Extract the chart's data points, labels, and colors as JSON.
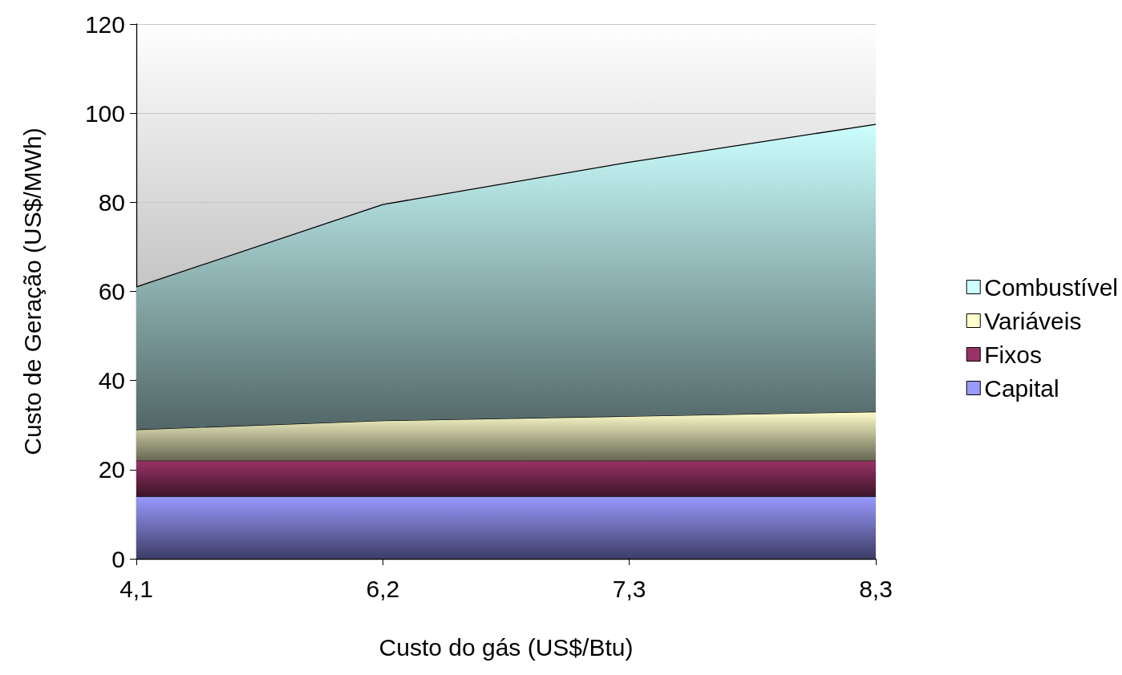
{
  "chart_data": {
    "type": "area",
    "stacked": true,
    "xlabel": "Custo do gás (US$/Btu)",
    "ylabel": "Custo de Geração (US$/MWh)",
    "categories": [
      "4,1",
      "6,2",
      "7,3",
      "8,3"
    ],
    "series": [
      {
        "name": "Capital",
        "color": "#9999ff",
        "values": [
          14,
          14,
          14,
          14
        ]
      },
      {
        "name": "Fixos",
        "color": "#993366",
        "values": [
          8,
          8,
          8,
          8
        ]
      },
      {
        "name": "Variáveis",
        "color": "#ffffcc",
        "values": [
          7,
          9,
          10,
          11
        ]
      },
      {
        "name": "Combustível",
        "color": "#ccffff",
        "values": [
          32,
          48.5,
          57,
          64.5
        ]
      }
    ],
    "ylim": [
      0,
      120
    ],
    "yticks": [
      0,
      20,
      40,
      60,
      80,
      100,
      120
    ],
    "grid": "y",
    "legend": "right",
    "marker": "none",
    "line_style": "solid"
  }
}
